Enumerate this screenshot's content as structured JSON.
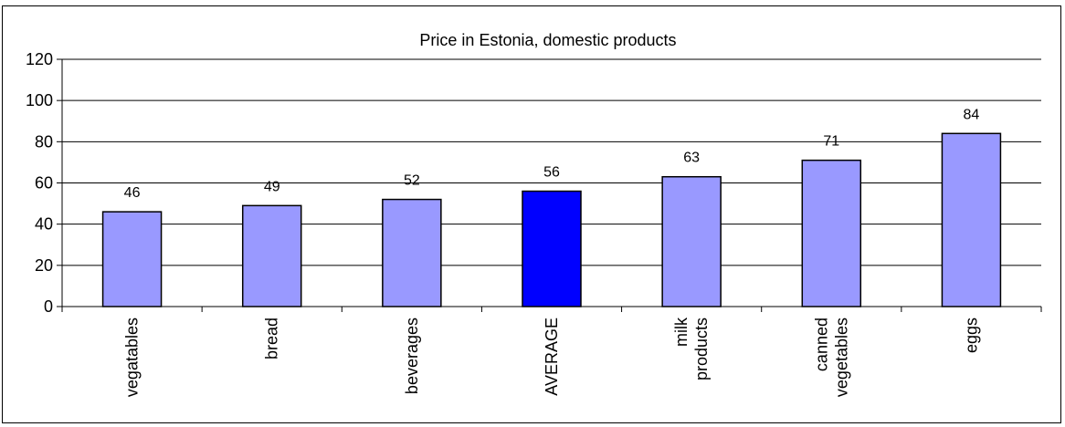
{
  "chart_data": {
    "type": "bar",
    "title": "Price in Estonia, domestic products",
    "categories": [
      [
        "vegatables"
      ],
      [
        "bread"
      ],
      [
        "beverages"
      ],
      [
        "AVERAGE"
      ],
      [
        "milk",
        "products"
      ],
      [
        "canned",
        "vegetables"
      ],
      [
        "eggs"
      ]
    ],
    "values": [
      46,
      49,
      52,
      56,
      63,
      71,
      84
    ],
    "highlight_index": 3,
    "colors": {
      "bar": "#9999ff",
      "highlight": "#0000ff",
      "outline": "#000000",
      "grid": "#000000"
    },
    "ylim": [
      0,
      120
    ],
    "yticks": [
      0,
      20,
      40,
      60,
      80,
      100,
      120
    ],
    "grid": true,
    "legend": "none",
    "xlabel": "",
    "ylabel": ""
  }
}
